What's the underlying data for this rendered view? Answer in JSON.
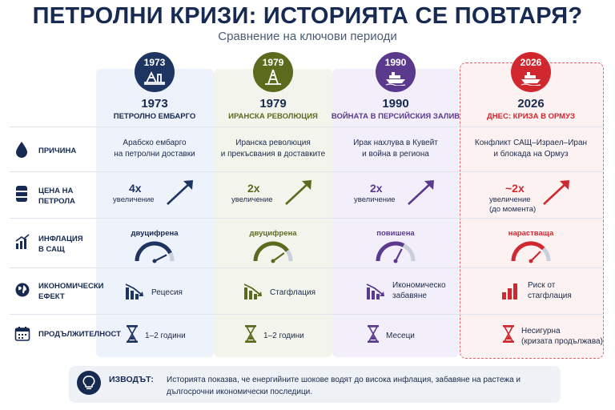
{
  "header": {
    "title": "ПЕТРОЛНИ КРИЗИ: ИСТОРИЯТА СЕ ПОВТАРЯ?",
    "subtitle": "Сравнение на ключови периоди"
  },
  "rows": {
    "cause": "ПРИЧИНА",
    "oil_price_1": "ЦЕНА НА",
    "oil_price_2": "ПЕТРОЛА",
    "inflation_1": "ИНФЛАЦИЯ",
    "inflation_2": "В САЩ",
    "economic_1": "ИКОНОМИЧЕСКИ",
    "economic_2": "ЕФЕКТ",
    "duration": "ПРОДЪЛЖИТЕЛНОСТ"
  },
  "periods": [
    {
      "year": "1973",
      "name": "ПЕТРОЛНО ЕМБАРГО",
      "color": "#1f3561",
      "cause_1": "Арабско ембарго",
      "cause_2": "на петролни доставки",
      "multiplier": "4x",
      "increase_1": "увеличение",
      "increase_2": "",
      "inflation": "двуцифрена",
      "gauge_level": 0.85,
      "effect_1": "Рецесия",
      "effect_2": "",
      "duration_1": "1–2 години",
      "duration_2": ""
    },
    {
      "year": "1979",
      "name": "ИРАНСКА РЕВОЛЮЦИЯ",
      "color": "#5b6b1e",
      "cause_1": "Иранска революция",
      "cause_2": "и прекъсвания в доставките",
      "multiplier": "2x",
      "increase_1": "увеличение",
      "increase_2": "",
      "inflation": "двуцифрена",
      "gauge_level": 0.8,
      "effect_1": "Стагфлация",
      "effect_2": "",
      "duration_1": "1–2 години",
      "duration_2": ""
    },
    {
      "year": "1990",
      "name": "ВОЙНАТА В ПЕРСИЙСКИЯ ЗАЛИВ",
      "color": "#5b3a8e",
      "cause_1": "Ирак нахлува в Кувейт",
      "cause_2": "и война в региона",
      "multiplier": "2x",
      "increase_1": "увеличение",
      "increase_2": "",
      "inflation": "повишена",
      "gauge_level": 0.65,
      "effect_1": "Икономическо",
      "effect_2": "забавяне",
      "duration_1": "Месеци",
      "duration_2": ""
    },
    {
      "year": "2026",
      "name": "ДНЕС: КРИЗА В ОРМУЗ",
      "color": "#d1282f",
      "cause_1": "Конфликт САЩ–Израел–Иран",
      "cause_2": "и блокада на Ормуз",
      "multiplier": "~2x",
      "increase_1": "увеличение",
      "increase_2": "(до момента)",
      "inflation": "нарастваща",
      "gauge_level": 0.75,
      "effect_1": "Риск от",
      "effect_2": "стагфлация",
      "duration_1": "Несигурна",
      "duration_2": "(кризата продължава)"
    }
  ],
  "conclusion": {
    "label": "ИЗВОДЪТ:",
    "text": "Историята показва, че енергийните шокове водят до висока инфлация, забавяне на растежа и дългосрочни икономически последици."
  },
  "icons": {
    "cause": "oil-drop-icon",
    "price": "oil-barrel-icon",
    "inflation": "rising-bars-icon",
    "economic": "globe-icon",
    "duration": "calendar-icon",
    "conclusion": "lightbulb-icon"
  }
}
